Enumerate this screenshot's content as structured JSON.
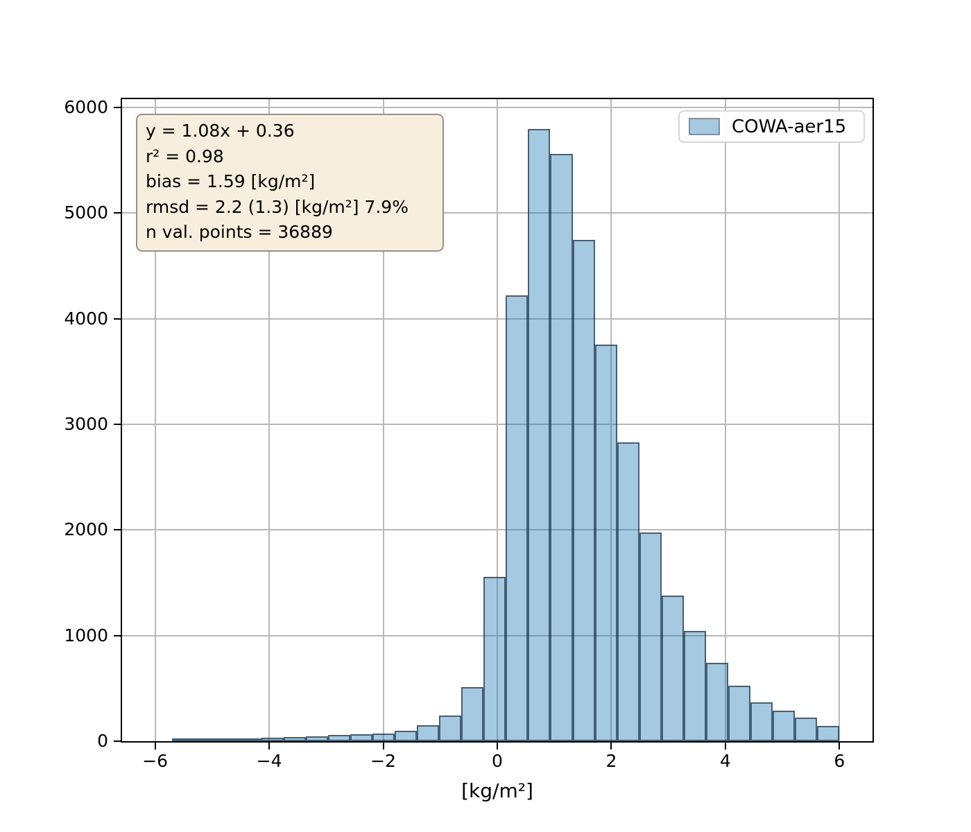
{
  "stats_box": {
    "lines": [
      "y = 1.08x + 0.36",
      "r² = 0.98",
      "bias = 1.59 [kg/m²]",
      "rmsd = 2.2 (1.3) [kg/m²] 7.9%",
      "n val. points = 36889"
    ],
    "background": "#f8eedd",
    "border_color": "#979088"
  },
  "legend": {
    "label": "COWA-aer15",
    "swatch_fill": "#a5c9e1",
    "swatch_border": "#82909c",
    "position": "upper right"
  },
  "chart_data": {
    "type": "bar",
    "subtype": "histogram",
    "title": "",
    "xlabel": "[kg/m²]",
    "ylabel": "",
    "xlim": [
      -6.58,
      6.58
    ],
    "ylim": [
      0,
      6080
    ],
    "x_ticks": [
      -6,
      -4,
      -2,
      0,
      2,
      4,
      6
    ],
    "x_tick_labels": [
      "−6",
      "−4",
      "−2",
      "0",
      "2",
      "4",
      "6"
    ],
    "y_ticks": [
      0,
      1000,
      2000,
      3000,
      4000,
      5000,
      6000
    ],
    "y_tick_labels": [
      "0",
      "1000",
      "2000",
      "3000",
      "4000",
      "5000",
      "6000"
    ],
    "grid": true,
    "grid_color": "#b8b8b8",
    "legend_position": "upper right",
    "series": [
      {
        "name": "COWA-aer15",
        "bin_start": -5.7,
        "bin_width": 0.39,
        "counts": [
          5,
          18,
          20,
          24,
          30,
          38,
          46,
          62,
          66,
          74,
          100,
          150,
          240,
          510,
          1555,
          4220,
          5800,
          5560,
          4750,
          3755,
          2830,
          1975,
          1380,
          1045,
          740,
          525,
          367,
          290,
          224,
          147
        ]
      }
    ],
    "bar_fill": "rgba(31,119,180,0.40)",
    "bar_edge": "rgba(10,30,48,0.62)"
  }
}
